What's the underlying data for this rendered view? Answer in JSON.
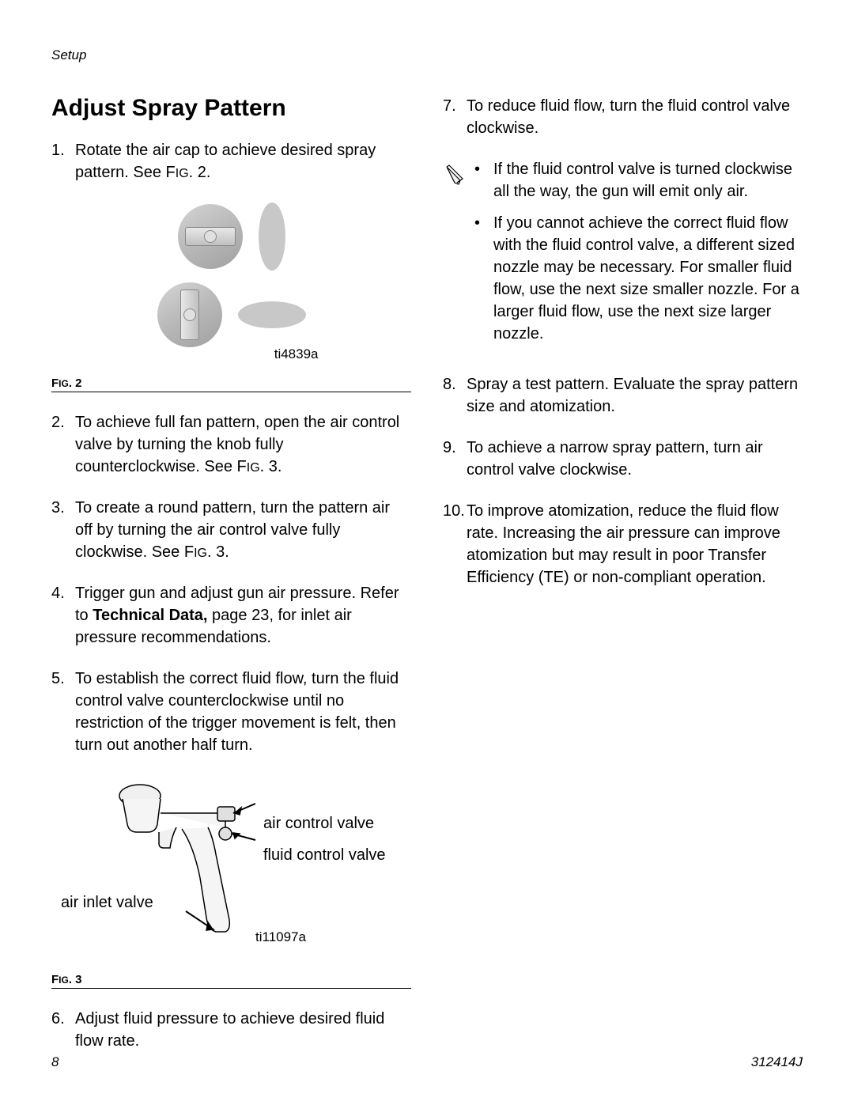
{
  "header": "Setup",
  "title": "Adjust Spray Pattern",
  "left_items": [
    {
      "num": "1.",
      "text_parts": [
        {
          "t": "Rotate the air cap to achieve desired spray pattern. See F"
        },
        {
          "t": "IG",
          "sc": true
        },
        {
          "t": ". 2."
        }
      ]
    }
  ],
  "fig2": {
    "label_prefix": "F",
    "label_sc": "IG",
    "label_suffix": ". 2",
    "img_code": "ti4839a"
  },
  "left_items_2": [
    {
      "num": "2.",
      "text_parts": [
        {
          "t": "To achieve full fan pattern, open the air control valve by turning the knob fully counterclockwise. See F"
        },
        {
          "t": "IG",
          "sc": true
        },
        {
          "t": ". 3."
        }
      ]
    },
    {
      "num": "3.",
      "text_parts": [
        {
          "t": "To create a round pattern, turn the pattern air off by turning the air control valve fully clockwise. See F"
        },
        {
          "t": "IG",
          "sc": true
        },
        {
          "t": ". 3."
        }
      ]
    },
    {
      "num": "4.",
      "text_parts": [
        {
          "t": "Trigger gun and adjust gun air pressure. Refer to "
        },
        {
          "t": "Technical Data,",
          "b": true
        },
        {
          "t": " page 23, for inlet air pressure recommendations."
        }
      ]
    },
    {
      "num": "5.",
      "text_parts": [
        {
          "t": "To establish the correct fluid flow, turn the fluid control valve counterclockwise until no restriction of the trigger movement is felt, then turn out another half turn."
        }
      ]
    }
  ],
  "fig3": {
    "label_prefix": "F",
    "label_sc": "IG",
    "label_suffix": ". 3",
    "img_code": "ti11097a",
    "annotations": {
      "air_control": "air control valve",
      "fluid_control": "fluid control valve",
      "air_inlet": "air inlet valve"
    }
  },
  "left_items_3": [
    {
      "num": "6.",
      "text_parts": [
        {
          "t": "Adjust fluid pressure to achieve desired fluid flow rate."
        }
      ]
    }
  ],
  "right_items_1": [
    {
      "num": "7.",
      "text_parts": [
        {
          "t": "To reduce fluid flow, turn the fluid control valve clockwise."
        }
      ]
    }
  ],
  "note_bullets": [
    "If the fluid control valve is turned clockwise all the way, the gun will emit only air.",
    "If you cannot achieve the correct fluid flow with the fluid control valve, a different sized nozzle may be necessary. For smaller fluid flow, use the next size smaller nozzle. For a larger fluid flow, use the next size larger nozzle."
  ],
  "right_items_2": [
    {
      "num": "8.",
      "text_parts": [
        {
          "t": "Spray a test pattern. Evaluate the spray pattern size and atomization."
        }
      ]
    },
    {
      "num": "9.",
      "text_parts": [
        {
          "t": "To achieve a narrow spray pattern, turn air control valve clockwise."
        }
      ]
    },
    {
      "num": "10.",
      "text_parts": [
        {
          "t": "To improve atomization, reduce the fluid flow rate. Increasing the air pressure can improve atomization but may result in poor Transfer Efficiency (TE) or non-compliant operation."
        }
      ]
    }
  ],
  "footer": {
    "page": "8",
    "doc": "312414J"
  },
  "colors": {
    "text": "#000000",
    "gray_shape": "#c8c8c8",
    "gray_mid": "#b0b0b0"
  }
}
